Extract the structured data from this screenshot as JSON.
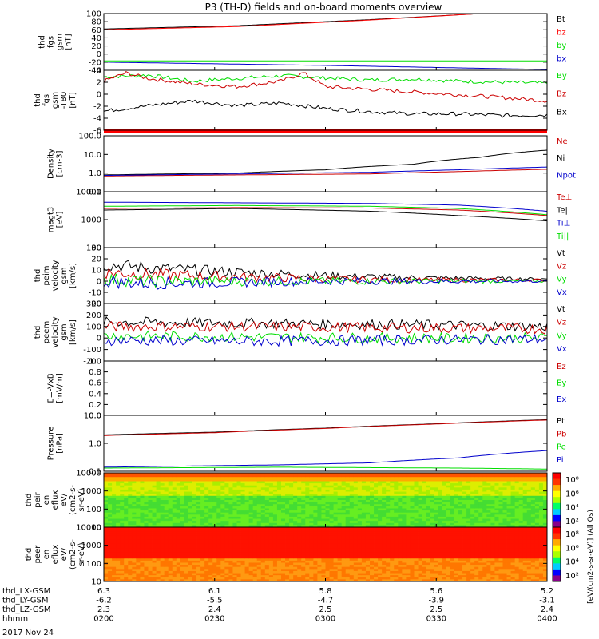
{
  "title": "P3 (TH-D) fields and on-board moments overview",
  "colors": {
    "black": "#000000",
    "red": "#cc0000",
    "bright_red": "#ff0000",
    "green": "#00dd00",
    "blue": "#0000cc",
    "ink": "#000000"
  },
  "chart_data": [
    {
      "type": "line",
      "id": "fgs",
      "ylabel": [
        "thd",
        "fgs",
        "gsm",
        "[nT]"
      ],
      "yticks": [
        "100",
        "80",
        "60",
        "40",
        "20",
        "0",
        "-20",
        "-40"
      ],
      "ylim": [
        -40,
        100
      ],
      "legend": [
        {
          "label": "Bt",
          "color": "black"
        },
        {
          "label": "bz",
          "color": "bright_red"
        },
        {
          "label": "by",
          "color": "green"
        },
        {
          "label": "bx",
          "color": "blue"
        }
      ],
      "series": [
        {
          "name": "Bt",
          "color": "black",
          "x": [
            0,
            0.3,
            0.6,
            0.85,
            1
          ],
          "y": [
            62,
            70,
            85,
            100,
            100
          ]
        },
        {
          "name": "bz",
          "color": "bright_red",
          "x": [
            0,
            0.3,
            0.6,
            0.85,
            1
          ],
          "y": [
            60,
            68,
            84,
            100,
            100
          ]
        },
        {
          "name": "by",
          "color": "green",
          "x": [
            0,
            0.5,
            1
          ],
          "y": [
            -17,
            -17,
            -17
          ]
        },
        {
          "name": "bx",
          "color": "blue",
          "x": [
            0,
            0.5,
            1
          ],
          "y": [
            -20,
            -28,
            -38
          ]
        }
      ]
    },
    {
      "type": "line",
      "id": "fgs_hp",
      "ylabel": [
        "thd",
        "fgs",
        "gsm",
        "-T80",
        "[nT]"
      ],
      "yticks": [
        "4",
        "2",
        "0",
        "-2",
        "-4",
        "-6"
      ],
      "ylim": [
        -7,
        4
      ],
      "legend": [
        {
          "label": "By",
          "color": "green"
        },
        {
          "label": "Bz",
          "color": "red"
        },
        {
          "label": "Bx",
          "color": "black"
        }
      ],
      "series": [
        {
          "name": "By",
          "color": "green",
          "x": [
            0,
            0.1,
            0.2,
            0.3,
            0.4,
            0.5,
            0.6,
            0.7,
            0.8,
            0.9,
            1
          ],
          "y": [
            2.8,
            3.1,
            2,
            2.5,
            3,
            2.6,
            2.2,
            2.4,
            2,
            1.8,
            1.6
          ]
        },
        {
          "name": "Bz",
          "color": "red",
          "x": [
            0,
            0.05,
            0.1,
            0.2,
            0.3,
            0.4,
            0.45,
            0.5,
            0.6,
            0.7,
            0.8,
            0.9,
            1
          ],
          "y": [
            2,
            3.5,
            2.5,
            1.5,
            1,
            2,
            3.5,
            1,
            0.5,
            0,
            -0.5,
            -1,
            -1.6
          ]
        },
        {
          "name": "Bx",
          "color": "black",
          "x": [
            0,
            0.1,
            0.2,
            0.3,
            0.4,
            0.5,
            0.6,
            0.7,
            0.8,
            0.9,
            1
          ],
          "y": [
            -3.5,
            -2.5,
            -1.6,
            -2.5,
            -2,
            -3,
            -3.6,
            -4,
            -4,
            -4.3,
            -4.2
          ]
        }
      ]
    },
    {
      "type": "line",
      "id": "density",
      "ylog": true,
      "ylabel": [
        "Density",
        "[cm-3]"
      ],
      "yticks": [
        "100.0",
        "10.0",
        "1.0",
        "0.1"
      ],
      "ylim": [
        0.1,
        100
      ],
      "legend": [
        {
          "label": "Ne",
          "color": "red"
        },
        {
          "label": "Ni",
          "color": "black"
        },
        {
          "label": "Npot",
          "color": "blue"
        }
      ],
      "series": [
        {
          "name": "Ni",
          "color": "black",
          "x": [
            0,
            0.3,
            0.5,
            0.7,
            0.85,
            1
          ],
          "y": [
            0.8,
            1,
            1.5,
            3,
            7,
            17
          ]
        },
        {
          "name": "Ne",
          "color": "red",
          "x": [
            0,
            0.3,
            0.6,
            0.8,
            1
          ],
          "y": [
            0.7,
            0.8,
            0.9,
            1.2,
            1.6
          ]
        },
        {
          "name": "Npot",
          "color": "blue",
          "x": [
            0,
            0.3,
            0.6,
            0.8,
            1
          ],
          "y": [
            0.75,
            0.9,
            1.1,
            1.5,
            2.1
          ]
        }
      ]
    },
    {
      "type": "line",
      "id": "temp",
      "ylog": true,
      "ylabel": [
        "magt3",
        "[eV]"
      ],
      "yticks": [
        "10000",
        "1000",
        "100"
      ],
      "ylim": [
        100,
        10000
      ],
      "legend": [
        {
          "label": "Te⊥",
          "color": "red"
        },
        {
          "label": "Te||",
          "color": "black"
        },
        {
          "label": "Ti⊥",
          "color": "blue"
        },
        {
          "label": "Ti||",
          "color": "green"
        }
      ],
      "series": [
        {
          "name": "Ti⊥",
          "color": "blue",
          "x": [
            0,
            0.3,
            0.6,
            0.8,
            1
          ],
          "y": [
            4200,
            4000,
            3800,
            3300,
            2000
          ]
        },
        {
          "name": "Ti||",
          "color": "green",
          "x": [
            0,
            0.3,
            0.6,
            0.8,
            1
          ],
          "y": [
            3000,
            3200,
            3000,
            2500,
            1500
          ]
        },
        {
          "name": "Te⊥",
          "color": "red",
          "x": [
            0,
            0.3,
            0.6,
            0.8,
            1
          ],
          "y": [
            2500,
            2700,
            2600,
            2200,
            1400
          ]
        },
        {
          "name": "Te||",
          "color": "black",
          "x": [
            0,
            0.3,
            0.6,
            0.8,
            1
          ],
          "y": [
            2200,
            2500,
            2000,
            1400,
            900
          ]
        }
      ]
    },
    {
      "type": "line",
      "id": "peim_v",
      "ylabel": [
        "thd",
        "peim",
        "velocity",
        "gsm",
        "[km/s]"
      ],
      "yticks": [
        "30",
        "20",
        "10",
        "0",
        "-10",
        "-20"
      ],
      "ylim": [
        -20,
        30
      ],
      "legend": [
        {
          "label": "Vt",
          "color": "black"
        },
        {
          "label": "Vz",
          "color": "red"
        },
        {
          "label": "Vy",
          "color": "green"
        },
        {
          "label": "Vx",
          "color": "blue"
        }
      ],
      "series": [
        {
          "name": "Vt",
          "color": "black",
          "x": [
            0,
            0.1,
            0.3,
            0.5,
            0.7,
            1
          ],
          "y": [
            15,
            12,
            8,
            5,
            3,
            2
          ]
        },
        {
          "name": "Vz",
          "color": "red",
          "x": [
            0,
            0.1,
            0.3,
            0.5,
            0.7,
            1
          ],
          "y": [
            8,
            6,
            4,
            2,
            1,
            1
          ]
        },
        {
          "name": "Vy",
          "color": "green",
          "x": [
            0,
            0.1,
            0.3,
            0.5,
            0.7,
            1
          ],
          "y": [
            2,
            0,
            0,
            0,
            0,
            0
          ]
        },
        {
          "name": "Vx",
          "color": "blue",
          "x": [
            0,
            0.1,
            0.3,
            0.5,
            0.7,
            1
          ],
          "y": [
            0,
            -2,
            -1,
            0,
            0,
            0
          ]
        }
      ]
    },
    {
      "type": "line",
      "id": "peem_v",
      "ylabel": [
        "thd",
        "peem",
        "velocity",
        "gsm",
        "[km/s]"
      ],
      "yticks": [
        "300",
        "200",
        "100",
        "0",
        "-100",
        "-200"
      ],
      "ylim": [
        -200,
        300
      ],
      "legend": [
        {
          "label": "Vt",
          "color": "black"
        },
        {
          "label": "Vz",
          "color": "red"
        },
        {
          "label": "Vy",
          "color": "green"
        },
        {
          "label": "Vx",
          "color": "blue"
        }
      ],
      "series": [
        {
          "name": "Vt",
          "color": "black",
          "x": [
            0,
            0.3,
            0.6,
            1
          ],
          "y": [
            140,
            130,
            120,
            100
          ]
        },
        {
          "name": "Vz",
          "color": "red",
          "x": [
            0,
            0.3,
            0.6,
            1
          ],
          "y": [
            100,
            100,
            90,
            80
          ]
        },
        {
          "name": "Vy",
          "color": "green",
          "x": [
            0,
            0.3,
            0.6,
            1
          ],
          "y": [
            20,
            10,
            0,
            0
          ]
        },
        {
          "name": "Vx",
          "color": "blue",
          "x": [
            0,
            0.3,
            0.6,
            1
          ],
          "y": [
            -20,
            -30,
            -20,
            -10
          ]
        }
      ]
    },
    {
      "type": "line",
      "id": "efield",
      "ylabel": [
        "E=-VxB",
        "[mV/m]"
      ],
      "yticks": [
        "1.0",
        "0.8",
        "0.6",
        "0.4",
        "0.2",
        "0.0"
      ],
      "ylim": [
        0,
        1
      ],
      "legend": [
        {
          "label": "Ez",
          "color": "red"
        },
        {
          "label": "Ey",
          "color": "green"
        },
        {
          "label": "Ex",
          "color": "blue"
        }
      ],
      "series": []
    },
    {
      "type": "line",
      "id": "pressure",
      "ylog": true,
      "ylabel": [
        "Pressure",
        "[nPa]"
      ],
      "yticks": [
        "10.0",
        "1.0",
        "0.1"
      ],
      "ylim": [
        0.1,
        10
      ],
      "legend": [
        {
          "label": "Pt",
          "color": "black"
        },
        {
          "label": "Pb",
          "color": "red"
        },
        {
          "label": "Pe",
          "color": "green"
        },
        {
          "label": "Pi",
          "color": "blue"
        }
      ],
      "series": [
        {
          "name": "Pt",
          "color": "black",
          "x": [
            0,
            0.25,
            0.5,
            0.75,
            1
          ],
          "y": [
            2,
            2.5,
            3.5,
            5,
            7
          ]
        },
        {
          "name": "Pb",
          "color": "red",
          "x": [
            0,
            0.25,
            0.5,
            0.75,
            1
          ],
          "y": [
            1.9,
            2.4,
            3.4,
            4.9,
            6.8
          ]
        },
        {
          "name": "Pi",
          "color": "blue",
          "x": [
            0,
            0.4,
            0.6,
            0.8,
            1
          ],
          "y": [
            0.14,
            0.17,
            0.2,
            0.3,
            0.55
          ]
        },
        {
          "name": "Pe",
          "color": "green",
          "x": [
            0,
            0.4,
            0.8,
            1
          ],
          "y": [
            0.13,
            0.14,
            0.13,
            0.12
          ]
        }
      ]
    },
    {
      "type": "heatmap",
      "id": "peir",
      "ylabel": [
        "thd",
        "peir",
        "en",
        "eflux",
        "eV/",
        "(cm2-s-",
        "sr-eV)"
      ],
      "yticks": [
        "10000",
        "1000",
        "100",
        "10"
      ],
      "ylim": [
        10,
        10000
      ],
      "cbar_ticks": [
        "10⁸",
        "10⁶",
        "10⁴",
        "10²"
      ]
    },
    {
      "type": "heatmap",
      "id": "peer",
      "ylabel": [
        "thd",
        "peer",
        "en",
        "eflux",
        "eV/",
        "(cm2-s-",
        "sr-eV)"
      ],
      "yticks": [
        "10000",
        "1000",
        "100",
        "10"
      ],
      "ylim": [
        10,
        10000
      ],
      "cbar_ticks": [
        "10⁸",
        "10⁶",
        "10⁴",
        "10²"
      ],
      "cbar_label": "[eV/(cm2-s-sr-eV)] (All Qs)"
    }
  ],
  "xaxis": {
    "rows": [
      {
        "label": "thd_LX-GSM",
        "values": [
          "6.3",
          "6.1",
          "5.8",
          "5.6",
          "5.2"
        ]
      },
      {
        "label": "thd_LY-GSM",
        "values": [
          "-6.2",
          "-5.5",
          "-4.7",
          "-3.9",
          "-3.1"
        ]
      },
      {
        "label": "thd_LZ-GSM",
        "values": [
          "2.3",
          "2.4",
          "2.5",
          "2.5",
          "2.4"
        ]
      },
      {
        "label": "hhmm",
        "values": [
          "0200",
          "0230",
          "0300",
          "0330",
          "0400"
        ]
      }
    ],
    "date": "2017 Nov 24"
  }
}
